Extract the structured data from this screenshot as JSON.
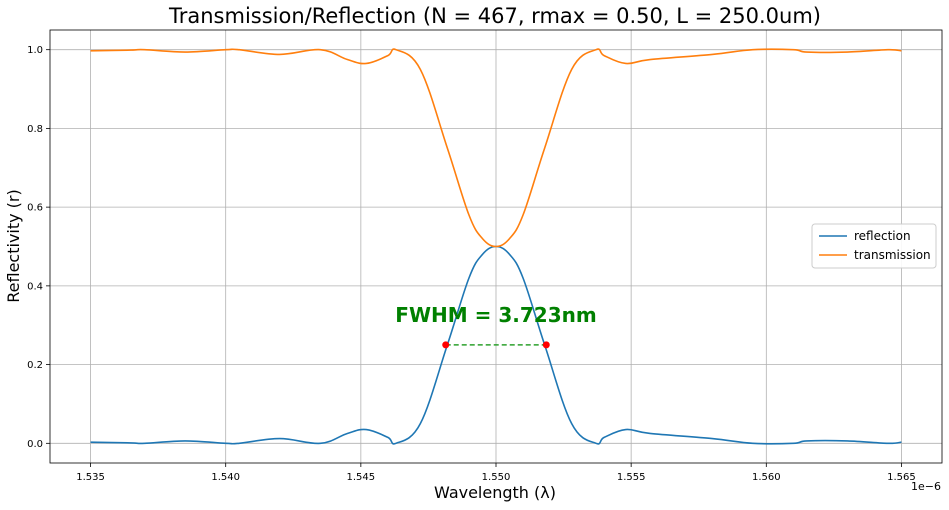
{
  "chart_data": {
    "type": "line",
    "title": "Transmission/Reflection (N = 467, rmax = 0.50, L = 250.0um)",
    "xlabel": "Wavelength (λ)",
    "ylabel": "Reflectivity (r)",
    "x_offset_label": "1e−6",
    "xlim": [
      1.5335,
      1.5665
    ],
    "ylim": [
      -0.05,
      1.05
    ],
    "x_ticks": [
      1.535,
      1.54,
      1.545,
      1.55,
      1.555,
      1.56,
      1.565
    ],
    "x_tick_labels": [
      "1.535",
      "1.540",
      "1.545",
      "1.550",
      "1.555",
      "1.560",
      "1.565"
    ],
    "y_ticks": [
      0.0,
      0.2,
      0.4,
      0.6,
      0.8,
      1.0
    ],
    "y_tick_labels": [
      "0.0",
      "0.2",
      "0.4",
      "0.6",
      "0.8",
      "1.0"
    ],
    "grid": true,
    "legend_position": "center-right",
    "x": [
      1.535,
      1.5365,
      1.537,
      1.5385,
      1.54,
      1.5405,
      1.542,
      1.5435,
      1.5445,
      1.5452,
      1.546,
      1.5463,
      1.5472,
      1.5482,
      1.549,
      1.5495,
      1.55,
      1.5505,
      1.551,
      1.5518,
      1.5528,
      1.5537,
      1.554,
      1.5548,
      1.5557,
      1.558,
      1.5595,
      1.561,
      1.5615,
      1.563,
      1.5645,
      1.565
    ],
    "series": [
      {
        "name": "reflection",
        "color": "#1f77b4",
        "values": [
          0.003,
          0.001,
          0.0,
          0.006,
          0.0,
          0.0,
          0.012,
          0.0,
          0.025,
          0.035,
          0.015,
          0.0,
          0.05,
          0.25,
          0.42,
          0.48,
          0.5,
          0.48,
          0.42,
          0.25,
          0.05,
          0.0,
          0.015,
          0.035,
          0.025,
          0.012,
          0.0,
          0.0,
          0.006,
          0.006,
          0.0,
          0.003
        ]
      },
      {
        "name": "transmission",
        "color": "#ff7f0e",
        "values": [
          0.997,
          0.999,
          1.0,
          0.994,
          1.0,
          1.0,
          0.988,
          1.0,
          0.975,
          0.965,
          0.985,
          1.0,
          0.95,
          0.75,
          0.58,
          0.52,
          0.5,
          0.52,
          0.58,
          0.75,
          0.95,
          1.0,
          0.985,
          0.965,
          0.975,
          0.988,
          1.0,
          1.0,
          0.994,
          0.994,
          1.0,
          0.997
        ]
      }
    ],
    "fwhm": {
      "label": "FWHM = 3.723nm",
      "label_color": "#008000",
      "x1": 1.54814,
      "x2": 1.55186,
      "y": 0.25,
      "line_color": "#2ca02c",
      "marker_color": "#ff0000"
    }
  }
}
